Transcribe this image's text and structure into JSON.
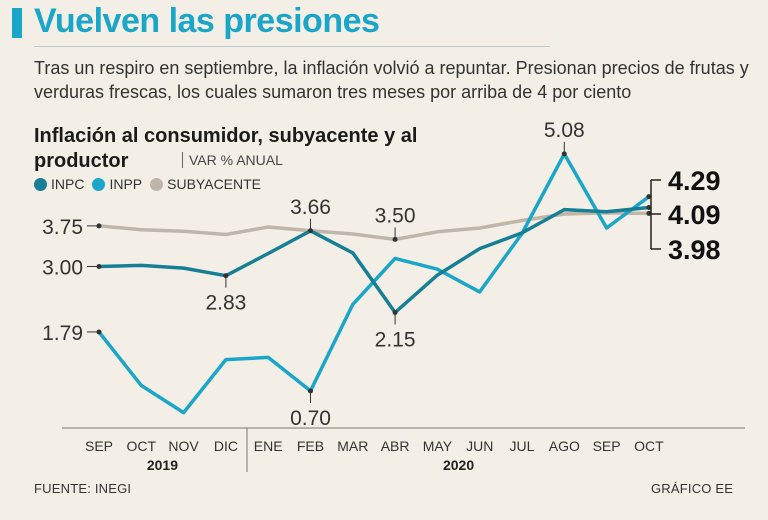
{
  "headline": "Vuelven las presiones",
  "subtitle": "Tras un respiro en septiembre, la inflación volvió a repuntar. Presionan precios de frutas y verduras frescas, los cuales sumaron tres meses por arriba de 4 por ciento",
  "chart_data": {
    "type": "line",
    "title": "Inflación al consumidor, subyacente y al productor",
    "unit_label": "VAR % ANUAL",
    "categories": [
      "SEP",
      "OCT",
      "NOV",
      "DIC",
      "ENE",
      "FEB",
      "MAR",
      "ABR",
      "MAY",
      "JUN",
      "JUL",
      "AGO",
      "SEP",
      "OCT"
    ],
    "year_groups": [
      {
        "label": "2019",
        "start": 0,
        "end": 3
      },
      {
        "label": "2020",
        "start": 4,
        "end": 13
      }
    ],
    "series": [
      {
        "name": "SUBYACENTE",
        "color": "#c0b5a9",
        "values": [
          3.75,
          3.68,
          3.65,
          3.59,
          3.73,
          3.66,
          3.6,
          3.5,
          3.64,
          3.71,
          3.85,
          3.97,
          3.99,
          3.98
        ]
      },
      {
        "name": "INPP",
        "color": "#1aa6c8",
        "values": [
          1.79,
          0.8,
          0.3,
          1.28,
          1.32,
          0.7,
          2.3,
          3.15,
          2.95,
          2.53,
          3.61,
          5.08,
          3.71,
          4.29
        ]
      },
      {
        "name": "INPC",
        "color": "#167f95",
        "values": [
          3.0,
          3.02,
          2.97,
          2.83,
          3.24,
          3.66,
          3.25,
          2.15,
          2.84,
          3.33,
          3.62,
          4.05,
          4.01,
          4.09
        ]
      }
    ],
    "annotations": [
      {
        "series": "SUBYACENTE",
        "index": 0,
        "label": "3.75",
        "pos": "left"
      },
      {
        "series": "INPC",
        "index": 0,
        "label": "3.00",
        "pos": "left"
      },
      {
        "series": "INPP",
        "index": 0,
        "label": "1.79",
        "pos": "left"
      },
      {
        "series": "INPC",
        "index": 3,
        "label": "2.83",
        "pos": "below"
      },
      {
        "series": "INPC",
        "index": 5,
        "label": "3.66",
        "pos": "above"
      },
      {
        "series": "INPP",
        "index": 5,
        "label": "0.70",
        "pos": "below"
      },
      {
        "series": "SUBYACENTE",
        "index": 7,
        "label": "3.50",
        "pos": "above"
      },
      {
        "series": "INPC",
        "index": 7,
        "label": "2.15",
        "pos": "below"
      },
      {
        "series": "INPP",
        "index": 11,
        "label": "5.08",
        "pos": "above"
      }
    ],
    "end_labels": [
      "4.29",
      "4.09",
      "3.98"
    ],
    "ylim": [
      0.2,
      5.3
    ]
  },
  "legend": [
    {
      "label": "INPC",
      "color": "#167f95"
    },
    {
      "label": "INPP",
      "color": "#1aa6c8"
    },
    {
      "label": "SUBYACENTE",
      "color": "#c0b5a9"
    }
  ],
  "source": "FUENTE: INEGI",
  "credit": "GRÁFICO EE"
}
